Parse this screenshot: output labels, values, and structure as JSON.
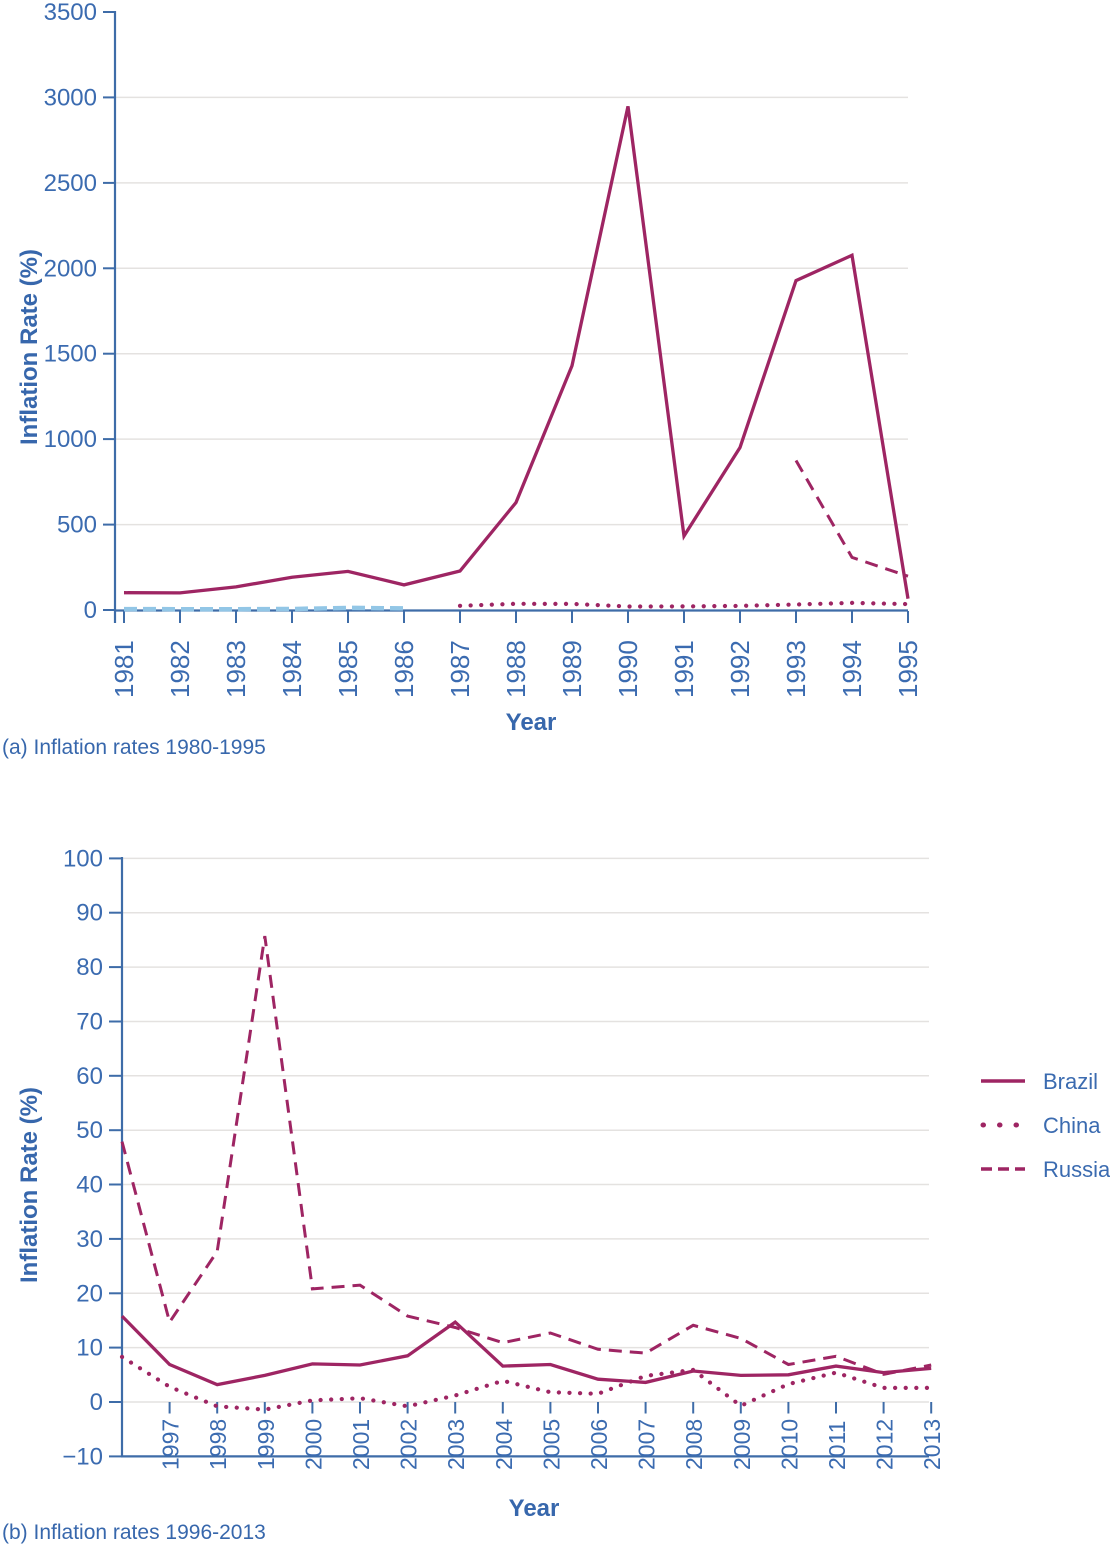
{
  "colors": {
    "line_crimson": "#9E2563",
    "china_early_blue": "#92C6E6",
    "axis_blue": "#3E6CA8",
    "text_blue": "#3B6BB0",
    "grid_gray": "#E4E2E0",
    "background": "#FFFFFF"
  },
  "panel_a": {
    "caption": "(a) Inflation rates 1980-1995",
    "xlabel": "Year",
    "ylabel": "Inflation Rate (%)"
  },
  "panel_b": {
    "caption": "(b) Inflation rates 1996-2013",
    "xlabel": "Year",
    "ylabel": "Inflation Rate (%)"
  },
  "legend": {
    "items": [
      {
        "label": "Brazil",
        "style": "solid"
      },
      {
        "label": "China",
        "style": "dotted"
      },
      {
        "label": "Russia",
        "style": "dashed"
      }
    ]
  },
  "chart_data": [
    {
      "type": "line",
      "panel": "a",
      "title": "(a) Inflation rates 1980-1995",
      "xlabel": "Year",
      "ylabel": "Inflation Rate (%)",
      "ylim": [
        0,
        3500
      ],
      "grid": "horizontal",
      "y_ticks": [
        0,
        500,
        1000,
        1500,
        2000,
        2500,
        3000,
        3500
      ],
      "y_tick_labels": [
        "0",
        "500",
        "1000",
        "1500",
        "2000",
        "2500",
        "3000",
        "3500"
      ],
      "grid_values": [
        500,
        1000,
        1500,
        2000,
        2500,
        3000
      ],
      "x_tick_years": [
        1981,
        1982,
        1983,
        1984,
        1985,
        1986,
        1987,
        1988,
        1989,
        1990,
        1991,
        1992,
        1993,
        1994,
        1995
      ],
      "x_tick_labels": [
        "1981",
        "1982",
        "1983",
        "1984",
        "1985",
        "1986",
        "1987",
        "1988",
        "1989",
        "1990",
        "1991",
        "1992",
        "1993",
        "1994",
        "1995"
      ],
      "series": [
        {
          "id": "brazil",
          "name": "Brazil",
          "line": "solid",
          "color": "#9E2563",
          "x": [
            1981,
            1982,
            1983,
            1984,
            1985,
            1986,
            1987,
            1988,
            1989,
            1990,
            1991,
            1992,
            1993,
            1994,
            1995
          ],
          "values": [
            101,
            100,
            135,
            192,
            226,
            147,
            228,
            629,
            1430,
            2948,
            433,
            951,
            1928,
            2076,
            66
          ]
        },
        {
          "id": "china-early",
          "name": "China",
          "line": "dashed",
          "color": "#92C6E6",
          "x": [
            1981,
            1982,
            1983,
            1984,
            1985,
            1986
          ],
          "values": [
            2.5,
            2,
            1.5,
            2.8,
            9.3,
            6.5
          ]
        },
        {
          "id": "china",
          "name": "China",
          "line": "dotted",
          "color": "#9E2563",
          "x": [
            1987,
            1988,
            1989,
            1990,
            1991,
            1992,
            1993,
            1994,
            1995
          ],
          "values": [
            7.2,
            18.8,
            18,
            3.1,
            3.5,
            6.3,
            14.6,
            24.2,
            16.9
          ]
        },
        {
          "id": "russia",
          "name": "Russia",
          "line": "dashed",
          "color": "#9E2563",
          "x": [
            1993,
            1994,
            1995
          ],
          "values": [
            875,
            308,
            198
          ]
        }
      ]
    },
    {
      "type": "line",
      "panel": "b",
      "title": "(b) Inflation rates 1996-2013",
      "xlabel": "Year",
      "ylabel": "Inflation Rate (%)",
      "ylim": [
        -10,
        100
      ],
      "grid": "horizontal",
      "legend_position": "right",
      "y_ticks": [
        -10,
        0,
        10,
        20,
        30,
        40,
        50,
        60,
        70,
        80,
        90,
        100
      ],
      "y_tick_labels": [
        "−10",
        "0",
        "10",
        "20",
        "30",
        "40",
        "50",
        "60",
        "70",
        "80",
        "90",
        "100"
      ],
      "grid_values": [
        0,
        10,
        20,
        30,
        40,
        50,
        60,
        70,
        80,
        90,
        100
      ],
      "x_tick_years": [
        1997,
        1998,
        1999,
        2000,
        2001,
        2002,
        2003,
        2004,
        2005,
        2006,
        2007,
        2008,
        2009,
        2010,
        2011,
        2012,
        2013
      ],
      "x_tick_labels": [
        "1997",
        "1998",
        "1999",
        "2000",
        "2001",
        "2002",
        "2003",
        "2004",
        "2005",
        "2006",
        "2007",
        "2008",
        "2009",
        "2010",
        "2011",
        "2012",
        "2013"
      ],
      "series": [
        {
          "id": "brazil",
          "name": "Brazil",
          "line": "solid",
          "color": "#9E2563",
          "x": [
            1996,
            1997,
            1998,
            1999,
            2000,
            2001,
            2002,
            2003,
            2004,
            2005,
            2006,
            2007,
            2008,
            2009,
            2010,
            2011,
            2012,
            2013
          ],
          "values": [
            15.8,
            6.9,
            3.2,
            4.9,
            7,
            6.8,
            8.5,
            14.7,
            6.6,
            6.9,
            4.2,
            3.6,
            5.7,
            4.9,
            5,
            6.6,
            5.4,
            6.2
          ]
        },
        {
          "id": "china",
          "name": "China",
          "line": "dotted",
          "color": "#9E2563",
          "x": [
            1996,
            1997,
            1998,
            1999,
            2000,
            2001,
            2002,
            2003,
            2004,
            2005,
            2006,
            2007,
            2008,
            2009,
            2010,
            2011,
            2012,
            2013
          ],
          "values": [
            8.3,
            2.8,
            -0.8,
            -1.4,
            0.3,
            0.7,
            -0.8,
            1.2,
            3.9,
            1.8,
            1.5,
            4.8,
            5.9,
            -0.7,
            3.3,
            5.4,
            2.6,
            2.6
          ]
        },
        {
          "id": "russia",
          "name": "Russia",
          "line": "dashed",
          "color": "#9E2563",
          "x": [
            1996,
            1997,
            1998,
            1999,
            2000,
            2001,
            2002,
            2003,
            2004,
            2005,
            2006,
            2007,
            2008,
            2009,
            2010,
            2011,
            2012,
            2013
          ],
          "values": [
            47.9,
            14.7,
            27.7,
            85.7,
            20.8,
            21.5,
            15.8,
            13.7,
            10.9,
            12.7,
            9.7,
            9,
            14.1,
            11.7,
            6.9,
            8.4,
            5.1,
            6.8
          ]
        }
      ]
    }
  ]
}
